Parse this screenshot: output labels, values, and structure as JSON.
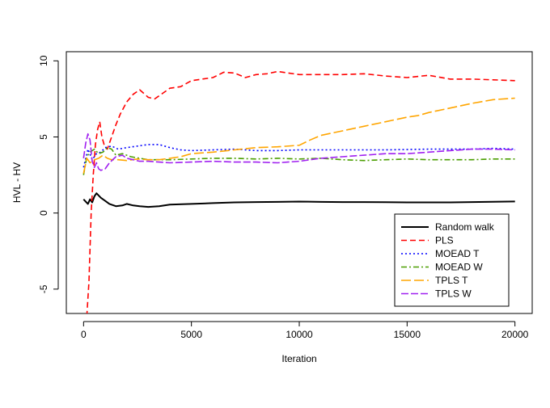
{
  "chart_data": {
    "type": "line",
    "title": "",
    "xlabel": "Iteration",
    "ylabel": "HVL - HV",
    "xlim": [
      -800,
      20800
    ],
    "ylim": [
      -6.6,
      10.6
    ],
    "xticks": [
      0,
      5000,
      10000,
      15000,
      20000
    ],
    "xtick_labels": [
      "0",
      "5000",
      "10000",
      "15000",
      "20000"
    ],
    "yticks": [
      -5,
      0,
      5,
      10
    ],
    "ytick_labels": [
      "-5",
      "0",
      "5",
      "10"
    ],
    "grid": false,
    "legend_position": "bottom-right",
    "series": [
      {
        "name": "Random walk",
        "color": "#000000",
        "dash": "solid",
        "width": 2,
        "points": [
          [
            0,
            0.9
          ],
          [
            200,
            0.6
          ],
          [
            300,
            0.9
          ],
          [
            400,
            0.7
          ],
          [
            500,
            1.1
          ],
          [
            600,
            1.3
          ],
          [
            800,
            1.0
          ],
          [
            1000,
            0.8
          ],
          [
            1200,
            0.6
          ],
          [
            1500,
            0.45
          ],
          [
            1800,
            0.5
          ],
          [
            2000,
            0.6
          ],
          [
            2300,
            0.5
          ],
          [
            2600,
            0.45
          ],
          [
            3000,
            0.4
          ],
          [
            3500,
            0.45
          ],
          [
            4000,
            0.55
          ],
          [
            5000,
            0.6
          ],
          [
            6000,
            0.65
          ],
          [
            7000,
            0.7
          ],
          [
            8000,
            0.72
          ],
          [
            9000,
            0.73
          ],
          [
            10000,
            0.75
          ],
          [
            11000,
            0.73
          ],
          [
            12000,
            0.72
          ],
          [
            13000,
            0.72
          ],
          [
            14000,
            0.71
          ],
          [
            15000,
            0.7
          ],
          [
            16000,
            0.7
          ],
          [
            17000,
            0.7
          ],
          [
            18000,
            0.72
          ],
          [
            19000,
            0.74
          ],
          [
            20000,
            0.76
          ]
        ]
      },
      {
        "name": "PLS",
        "color": "#ff0000",
        "dash": "7,4",
        "width": 1.6,
        "points": [
          [
            150,
            -6.8
          ],
          [
            250,
            -4.5
          ],
          [
            350,
            0.0
          ],
          [
            450,
            2.5
          ],
          [
            550,
            4.5
          ],
          [
            650,
            5.5
          ],
          [
            750,
            6.0
          ],
          [
            850,
            5.0
          ],
          [
            950,
            4.5
          ],
          [
            1100,
            4.2
          ],
          [
            1300,
            5.0
          ],
          [
            1500,
            5.8
          ],
          [
            1700,
            6.5
          ],
          [
            2000,
            7.3
          ],
          [
            2300,
            7.8
          ],
          [
            2600,
            8.1
          ],
          [
            3000,
            7.6
          ],
          [
            3300,
            7.5
          ],
          [
            3700,
            7.9
          ],
          [
            4000,
            8.2
          ],
          [
            4500,
            8.3
          ],
          [
            5000,
            8.7
          ],
          [
            5500,
            8.8
          ],
          [
            6000,
            8.9
          ],
          [
            6500,
            9.25
          ],
          [
            7000,
            9.2
          ],
          [
            7500,
            8.9
          ],
          [
            8000,
            9.1
          ],
          [
            8500,
            9.15
          ],
          [
            9000,
            9.3
          ],
          [
            9500,
            9.2
          ],
          [
            10000,
            9.1
          ],
          [
            11000,
            9.1
          ],
          [
            12000,
            9.1
          ],
          [
            13000,
            9.15
          ],
          [
            14000,
            9.0
          ],
          [
            15000,
            8.9
          ],
          [
            16000,
            9.05
          ],
          [
            17000,
            8.8
          ],
          [
            18000,
            8.8
          ],
          [
            19000,
            8.75
          ],
          [
            20000,
            8.7
          ]
        ]
      },
      {
        "name": "MOEAD T",
        "color": "#0000ff",
        "dash": "2,3",
        "width": 1.6,
        "points": [
          [
            0,
            3.0
          ],
          [
            200,
            4.2
          ],
          [
            400,
            3.5
          ],
          [
            600,
            3.9
          ],
          [
            800,
            4.0
          ],
          [
            1000,
            4.3
          ],
          [
            1300,
            4.4
          ],
          [
            1600,
            4.2
          ],
          [
            2000,
            4.3
          ],
          [
            2500,
            4.4
          ],
          [
            3000,
            4.5
          ],
          [
            3500,
            4.5
          ],
          [
            4000,
            4.3
          ],
          [
            4500,
            4.15
          ],
          [
            5000,
            4.1
          ],
          [
            6000,
            4.15
          ],
          [
            7000,
            4.2
          ],
          [
            8000,
            4.1
          ],
          [
            9000,
            4.1
          ],
          [
            10000,
            4.15
          ],
          [
            12000,
            4.15
          ],
          [
            14000,
            4.15
          ],
          [
            16000,
            4.2
          ],
          [
            18000,
            4.2
          ],
          [
            19000,
            4.25
          ],
          [
            20000,
            4.2
          ]
        ]
      },
      {
        "name": "MOEAD W",
        "color": "#4a9e00",
        "dash": "7,3,2,3",
        "width": 1.6,
        "points": [
          [
            0,
            2.5
          ],
          [
            150,
            3.7
          ],
          [
            300,
            4.0
          ],
          [
            500,
            4.2
          ],
          [
            700,
            3.9
          ],
          [
            900,
            4.0
          ],
          [
            1100,
            4.3
          ],
          [
            1300,
            4.2
          ],
          [
            1500,
            3.8
          ],
          [
            1800,
            3.9
          ],
          [
            2200,
            3.7
          ],
          [
            2600,
            3.6
          ],
          [
            3000,
            3.5
          ],
          [
            4000,
            3.5
          ],
          [
            5000,
            3.55
          ],
          [
            6000,
            3.6
          ],
          [
            7000,
            3.6
          ],
          [
            8000,
            3.55
          ],
          [
            9000,
            3.6
          ],
          [
            10000,
            3.55
          ],
          [
            11000,
            3.6
          ],
          [
            12000,
            3.5
          ],
          [
            13000,
            3.45
          ],
          [
            14000,
            3.5
          ],
          [
            15000,
            3.55
          ],
          [
            16000,
            3.5
          ],
          [
            17000,
            3.5
          ],
          [
            18000,
            3.5
          ],
          [
            19000,
            3.55
          ],
          [
            20000,
            3.55
          ]
        ]
      },
      {
        "name": "TPLS T",
        "color": "#ffa500",
        "dash": "12,4",
        "width": 1.6,
        "points": [
          [
            0,
            2.6
          ],
          [
            150,
            3.6
          ],
          [
            300,
            3.3
          ],
          [
            500,
            3.5
          ],
          [
            700,
            3.6
          ],
          [
            900,
            3.8
          ],
          [
            1100,
            3.6
          ],
          [
            1300,
            3.5
          ],
          [
            1600,
            3.5
          ],
          [
            2000,
            3.45
          ],
          [
            2500,
            3.55
          ],
          [
            3000,
            3.5
          ],
          [
            3500,
            3.5
          ],
          [
            4000,
            3.6
          ],
          [
            4500,
            3.7
          ],
          [
            5000,
            3.9
          ],
          [
            6000,
            4.0
          ],
          [
            7000,
            4.15
          ],
          [
            8000,
            4.3
          ],
          [
            9000,
            4.35
          ],
          [
            10000,
            4.45
          ],
          [
            10500,
            4.8
          ],
          [
            11000,
            5.1
          ],
          [
            12000,
            5.4
          ],
          [
            13000,
            5.7
          ],
          [
            14000,
            6.0
          ],
          [
            15000,
            6.3
          ],
          [
            15500,
            6.4
          ],
          [
            16000,
            6.6
          ],
          [
            17000,
            6.9
          ],
          [
            18000,
            7.2
          ],
          [
            19000,
            7.45
          ],
          [
            20000,
            7.55
          ]
        ]
      },
      {
        "name": "TPLS W",
        "color": "#a020f0",
        "dash": "9,3",
        "width": 1.6,
        "points": [
          [
            0,
            3.6
          ],
          [
            100,
            4.6
          ],
          [
            200,
            5.2
          ],
          [
            300,
            4.8
          ],
          [
            400,
            3.4
          ],
          [
            500,
            3.0
          ],
          [
            600,
            3.3
          ],
          [
            700,
            2.9
          ],
          [
            800,
            2.8
          ],
          [
            1000,
            2.9
          ],
          [
            1200,
            3.3
          ],
          [
            1500,
            3.7
          ],
          [
            1800,
            3.8
          ],
          [
            2000,
            3.6
          ],
          [
            2300,
            3.5
          ],
          [
            2600,
            3.4
          ],
          [
            3000,
            3.4
          ],
          [
            3500,
            3.35
          ],
          [
            4000,
            3.3
          ],
          [
            5000,
            3.35
          ],
          [
            6000,
            3.4
          ],
          [
            7000,
            3.35
          ],
          [
            8000,
            3.35
          ],
          [
            9000,
            3.3
          ],
          [
            10000,
            3.4
          ],
          [
            11000,
            3.6
          ],
          [
            12000,
            3.7
          ],
          [
            13000,
            3.8
          ],
          [
            14000,
            3.9
          ],
          [
            15000,
            3.9
          ],
          [
            16000,
            4.0
          ],
          [
            17000,
            4.1
          ],
          [
            18000,
            4.2
          ],
          [
            19000,
            4.2
          ],
          [
            20000,
            4.15
          ]
        ]
      }
    ]
  }
}
